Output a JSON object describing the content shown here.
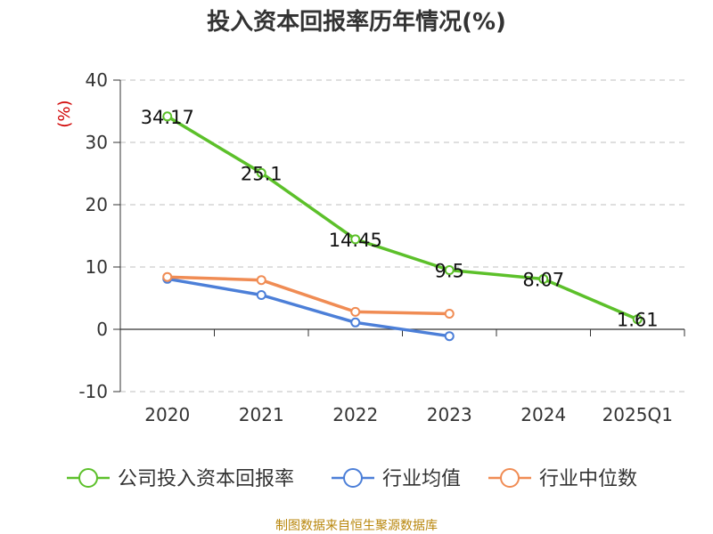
{
  "colors": {
    "company": "#5cc02a",
    "industry_avg": "#4c7fd8",
    "industry_median": "#f08c54",
    "grid": "#cccccc",
    "axis": "#333333"
  },
  "chart_data": {
    "type": "line",
    "title": "投入资本回报率历年情况(%)",
    "ylabel": "(%)",
    "xlabel": "",
    "categories": [
      "2020",
      "2021",
      "2022",
      "2023",
      "2024",
      "2025Q1"
    ],
    "ylim": [
      -10,
      40
    ],
    "yticks": [
      -10,
      0,
      10,
      20,
      30,
      40
    ],
    "ytick_labels": [
      "-10",
      "0",
      "10",
      "20",
      "30",
      "40"
    ],
    "grid": true,
    "legend_position": "bottom",
    "series": [
      {
        "name": "公司投入资本回报率",
        "color_key": "company",
        "values": [
          34.17,
          25.1,
          14.45,
          9.5,
          8.07,
          1.61
        ],
        "labels": [
          "34.17",
          "25.1",
          "14.45",
          "9.5",
          "8.07",
          "1.61"
        ]
      },
      {
        "name": "行业均值",
        "color_key": "industry_avg",
        "values": [
          8.1,
          5.5,
          1.1,
          -1.1,
          null,
          null
        ]
      },
      {
        "name": "行业中位数",
        "color_key": "industry_median",
        "values": [
          8.4,
          7.9,
          2.8,
          2.5,
          null,
          null
        ]
      }
    ]
  },
  "source": "制图数据来自恒生聚源数据库"
}
